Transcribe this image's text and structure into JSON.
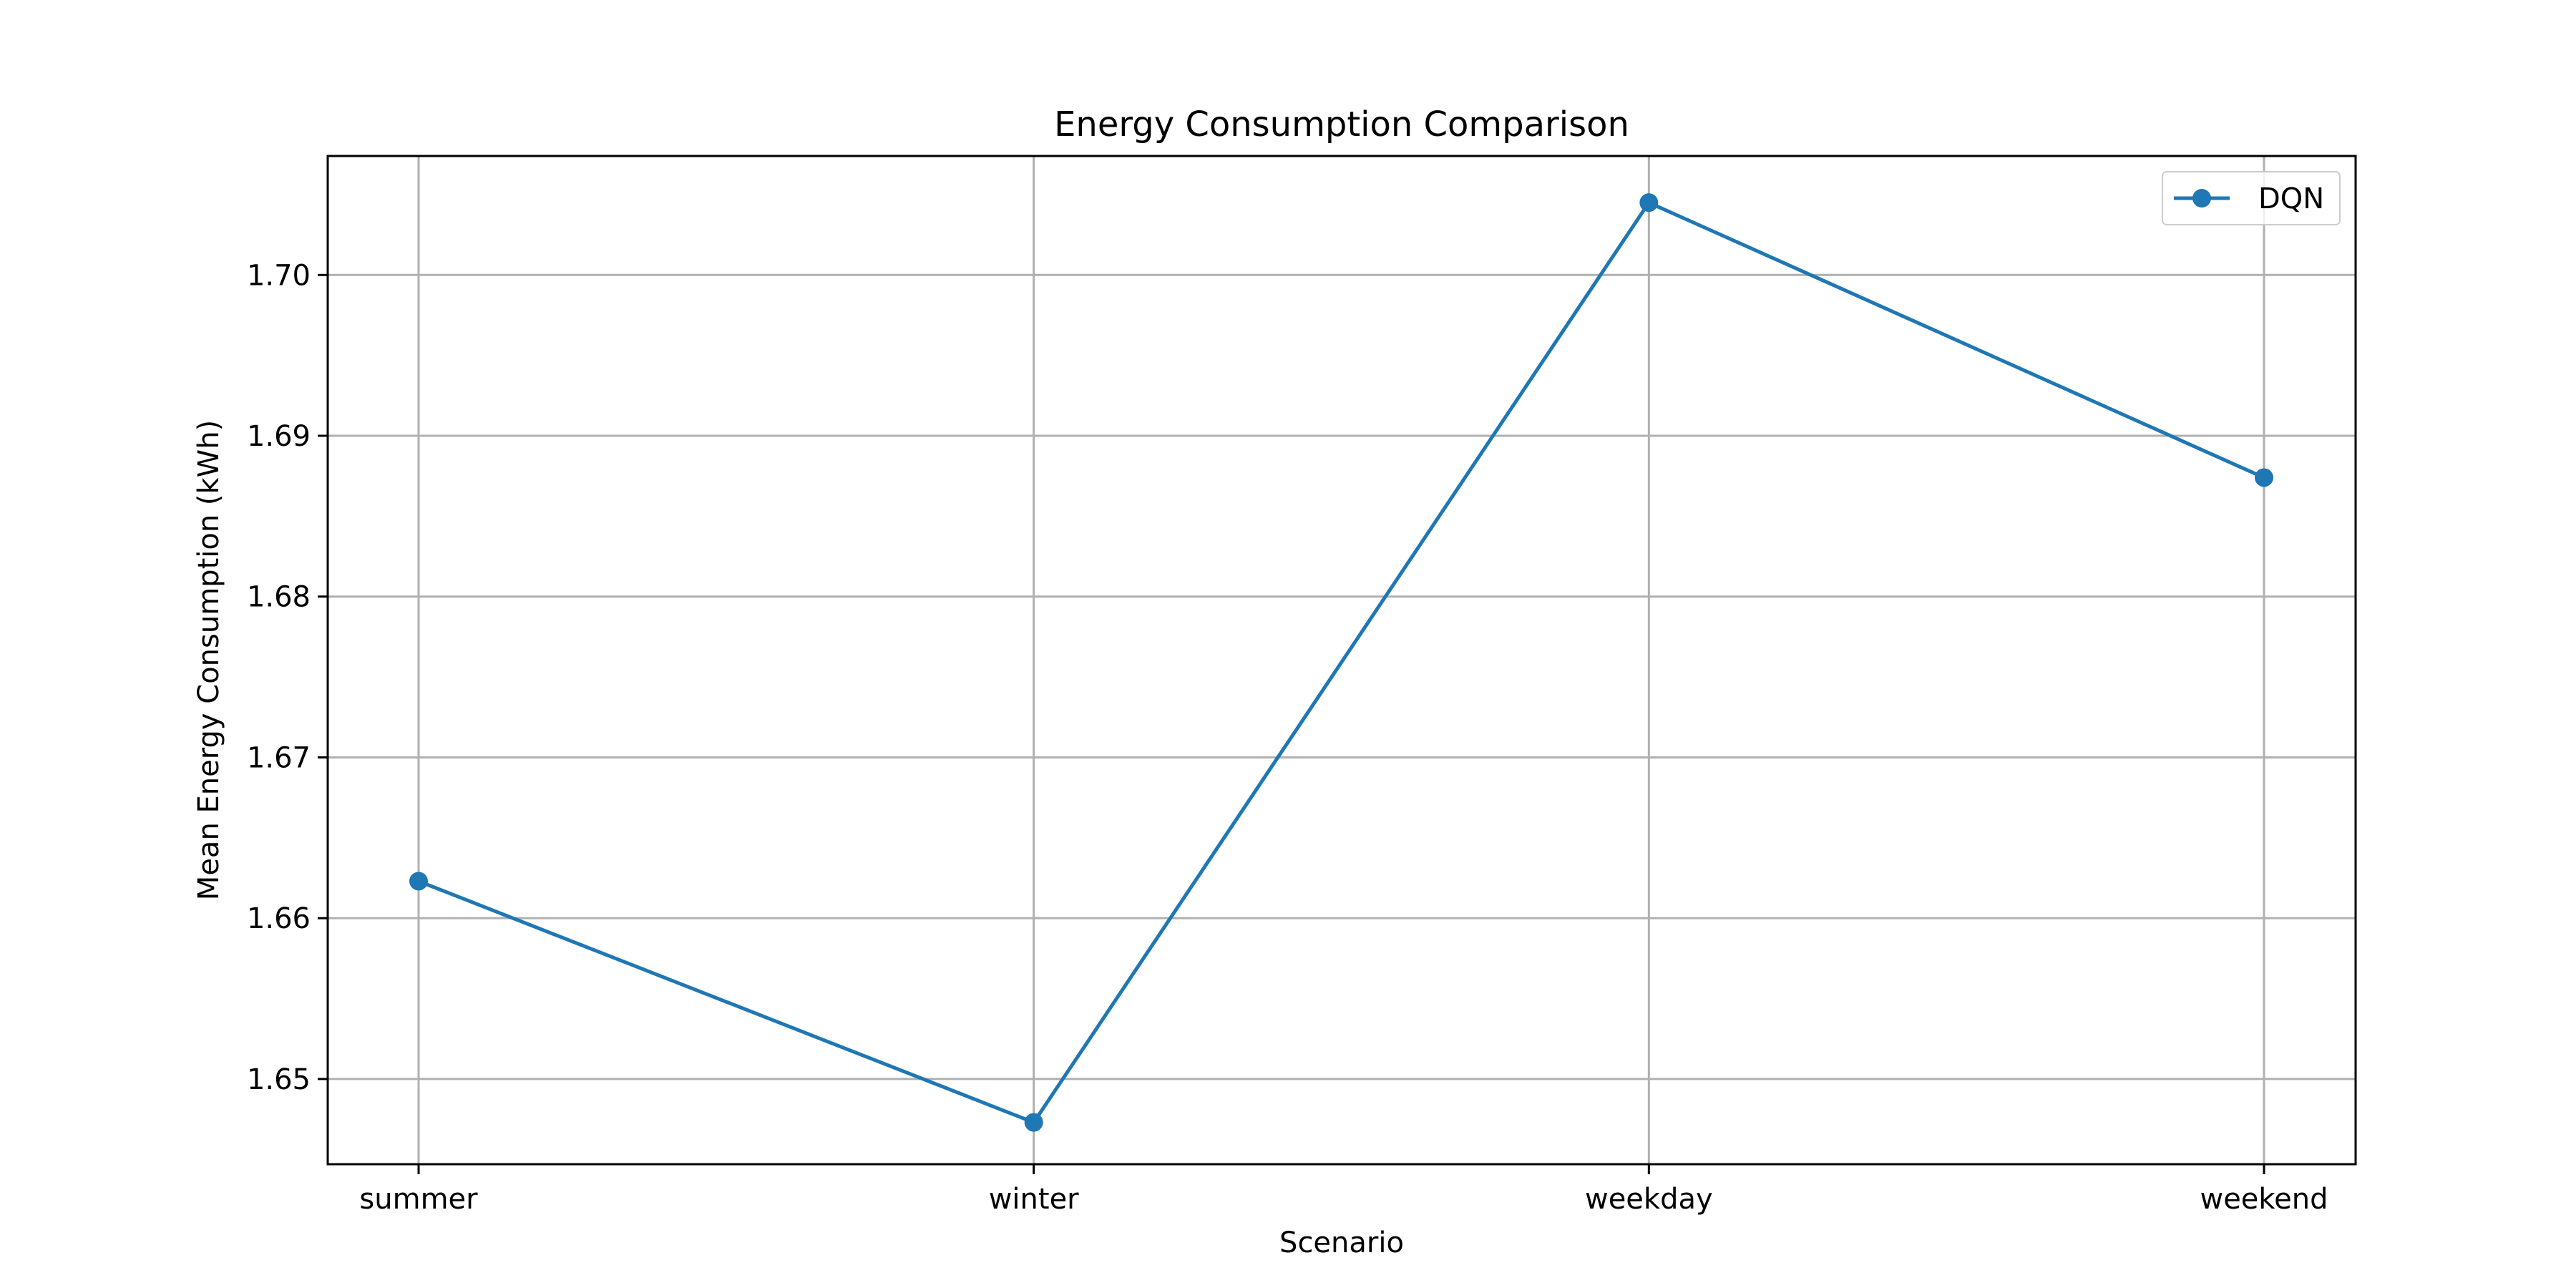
{
  "chart_data": {
    "type": "line",
    "title": "Energy Consumption Comparison",
    "xlabel": "Scenario",
    "ylabel": "Mean Energy Consumption (kWh)",
    "categories": [
      "summer",
      "winter",
      "weekday",
      "weekend"
    ],
    "series": [
      {
        "name": "DQN",
        "values": [
          1.6623,
          1.6473,
          1.7045,
          1.6874
        ],
        "color": "#1f77b4",
        "marker": "circle"
      }
    ],
    "ylim": [
      1.6447,
      1.7074
    ],
    "yticks": [
      1.65,
      1.66,
      1.67,
      1.68,
      1.69,
      1.7
    ],
    "ytick_labels": [
      "1.65",
      "1.66",
      "1.67",
      "1.68",
      "1.69",
      "1.70"
    ],
    "grid": true,
    "legend": {
      "position": "top-right"
    },
    "colors": {
      "axes": "#000000",
      "grid": "#b0b0b0",
      "background": "#ffffff"
    }
  }
}
